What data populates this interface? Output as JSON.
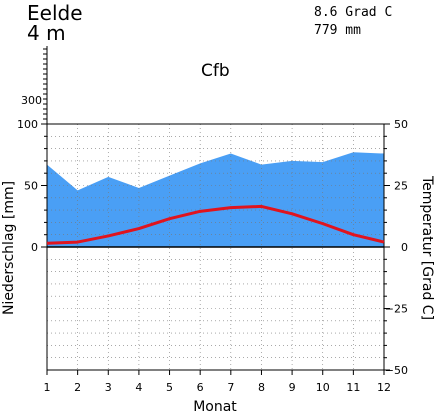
{
  "header": {
    "station": "Eelde",
    "elevation": "4 m",
    "temperature_info": "8.6 Grad C",
    "precip_info": "779 mm",
    "climate_class": "Cfb"
  },
  "colors": {
    "precip_fill": "#4a9ff5",
    "temp_line": "#e0141e",
    "grid": "#777777"
  },
  "chart_data": {
    "type": "area",
    "xlabel": "Monat",
    "ylabel_left": "Niederschlag [mm]",
    "ylabel_right": "Temperatur [Grad C]",
    "x": [
      1,
      2,
      3,
      4,
      5,
      6,
      7,
      8,
      9,
      10,
      11,
      12
    ],
    "x_ticks": [
      "1",
      "2",
      "3",
      "4",
      "5",
      "6",
      "7",
      "8",
      "9",
      "10",
      "11",
      "12"
    ],
    "left_ticks": [
      "0",
      "50",
      "100",
      "300"
    ],
    "right_ticks": [
      "50",
      "25",
      "0",
      "−25",
      "−50"
    ],
    "ylim_precip": [
      -100,
      100
    ],
    "ylim_temp": [
      -50,
      50
    ],
    "series": [
      {
        "values": [
          67,
          46,
          57,
          48,
          58,
          68,
          76,
          67,
          70,
          69,
          77,
          76
        ]
      },
      {
        "values": [
          1.5,
          2,
          4.5,
          7.5,
          11.5,
          14.5,
          16,
          16.5,
          13.5,
          9.5,
          5,
          2
        ]
      }
    ]
  }
}
